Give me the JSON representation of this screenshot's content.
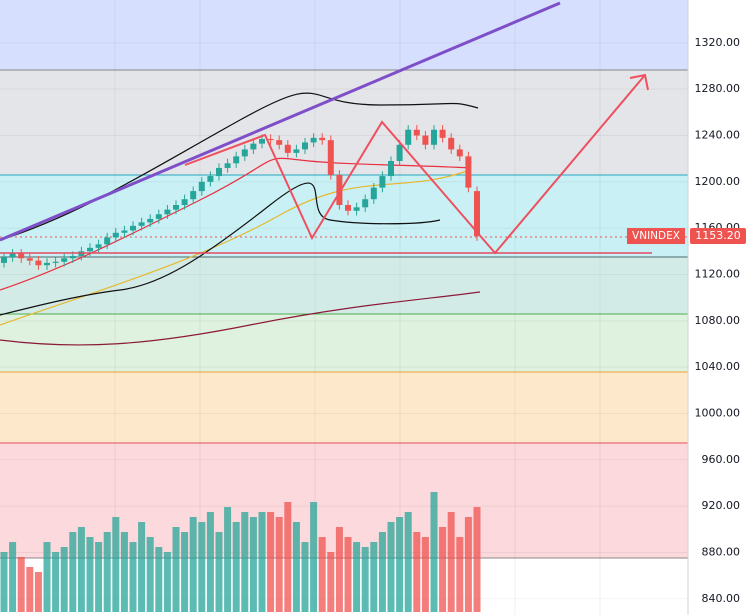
{
  "chart_data": {
    "type": "candlestick",
    "ylim": [
      826,
      1357
    ],
    "yticks": [
      {
        "value": 840,
        "label": "840.00"
      },
      {
        "value": 880,
        "label": "880.00"
      },
      {
        "value": 920,
        "label": "920.00"
      },
      {
        "value": 960,
        "label": "960.00"
      },
      {
        "value": 1000,
        "label": "1000.00"
      },
      {
        "value": 1040,
        "label": "1040.00"
      },
      {
        "value": 1080,
        "label": "1080.00"
      },
      {
        "value": 1120,
        "label": "1120.00"
      },
      {
        "value": 1160,
        "label": "1160.00"
      },
      {
        "value": 1200,
        "label": "1200.00"
      },
      {
        "value": 1240,
        "label": "1240.00"
      },
      {
        "value": 1280,
        "label": "1280.00"
      },
      {
        "value": 1320,
        "label": "1320.00"
      }
    ],
    "open": [
      1130,
      1135,
      1138,
      1134,
      1132,
      1128,
      1130,
      1131,
      1134,
      1136,
      1140,
      1143,
      1146,
      1152,
      1156,
      1158,
      1162,
      1165,
      1168,
      1172,
      1176,
      1180,
      1185,
      1192,
      1200,
      1205,
      1212,
      1216,
      1222,
      1228,
      1233,
      1237,
      1236,
      1232,
      1225,
      1228,
      1234,
      1238,
      1236,
      1206,
      1180,
      1175,
      1178,
      1185,
      1195,
      1205,
      1218,
      1232,
      1245,
      1240,
      1232,
      1245,
      1238,
      1228,
      1222,
      1192
    ],
    "high": [
      1139,
      1142,
      1142,
      1138,
      1136,
      1134,
      1135,
      1138,
      1140,
      1144,
      1147,
      1150,
      1156,
      1160,
      1162,
      1166,
      1169,
      1172,
      1176,
      1180,
      1184,
      1189,
      1196,
      1204,
      1209,
      1216,
      1220,
      1226,
      1232,
      1237,
      1241,
      1241,
      1240,
      1236,
      1232,
      1238,
      1242,
      1242,
      1240,
      1210,
      1184,
      1182,
      1189,
      1199,
      1209,
      1222,
      1236,
      1249,
      1249,
      1244,
      1249,
      1249,
      1242,
      1232,
      1226,
      1196
    ],
    "low": [
      1126,
      1131,
      1130,
      1128,
      1124,
      1124,
      1126,
      1127,
      1130,
      1132,
      1136,
      1139,
      1142,
      1148,
      1152,
      1154,
      1158,
      1161,
      1164,
      1168,
      1172,
      1176,
      1181,
      1188,
      1196,
      1201,
      1208,
      1212,
      1218,
      1224,
      1229,
      1232,
      1228,
      1221,
      1221,
      1224,
      1230,
      1232,
      1202,
      1176,
      1171,
      1171,
      1174,
      1181,
      1191,
      1201,
      1214,
      1228,
      1236,
      1228,
      1228,
      1234,
      1224,
      1218,
      1191,
      1149
    ],
    "close": [
      1135,
      1138,
      1134,
      1132,
      1128,
      1130,
      1131,
      1134,
      1136,
      1140,
      1143,
      1146,
      1152,
      1156,
      1158,
      1162,
      1165,
      1168,
      1172,
      1176,
      1180,
      1185,
      1192,
      1200,
      1205,
      1212,
      1216,
      1222,
      1228,
      1233,
      1237,
      1236,
      1232,
      1225,
      1228,
      1234,
      1238,
      1236,
      1206,
      1180,
      1175,
      1178,
      1185,
      1195,
      1205,
      1218,
      1232,
      1245,
      1240,
      1232,
      1245,
      1238,
      1228,
      1222,
      1195,
      1153
    ],
    "volume": [
      60,
      70,
      55,
      45,
      40,
      70,
      60,
      65,
      80,
      85,
      75,
      70,
      80,
      95,
      80,
      70,
      90,
      75,
      65,
      60,
      85,
      80,
      95,
      90,
      100,
      80,
      105,
      90,
      100,
      95,
      100,
      100,
      95,
      110,
      90,
      70,
      110,
      75,
      60,
      85,
      75,
      70,
      65,
      70,
      80,
      90,
      95,
      100,
      80,
      75,
      120,
      85,
      100,
      75,
      95,
      105
    ],
    "vlim": [
      0,
      160
    ],
    "up_color": "#26a69a",
    "down_color": "#ef5350",
    "price_tag": {
      "name": "VNINDEX",
      "value": 1153.2,
      "label": "1153.20"
    }
  }
}
